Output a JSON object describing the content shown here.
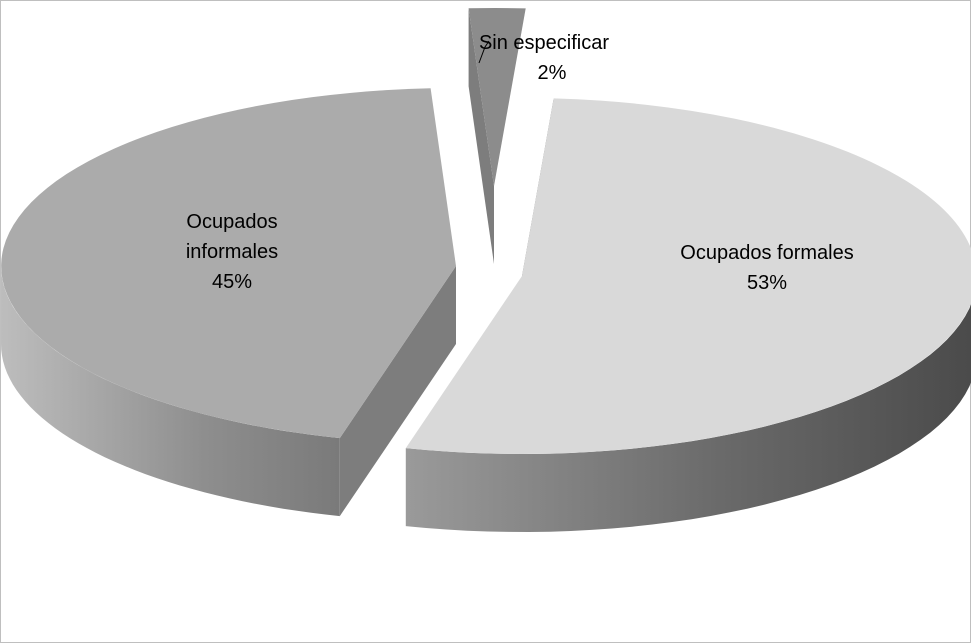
{
  "chart_data": {
    "type": "pie",
    "style": "3d-exploded",
    "slices": [
      {
        "label": "Ocupados formales",
        "label_lines": [
          "Ocupados formales"
        ],
        "value": 53,
        "value_label": "53%",
        "color": "#d9d9d9"
      },
      {
        "label": "Ocupados informales",
        "label_lines": [
          "Ocupados",
          "informales"
        ],
        "value": 45,
        "value_label": "45%",
        "color": "#ababab"
      },
      {
        "label": "Sin especificar",
        "label_lines": [
          "Sin especificar"
        ],
        "value": 2,
        "value_label": "2%",
        "color": "#8c8c8c"
      }
    ]
  }
}
